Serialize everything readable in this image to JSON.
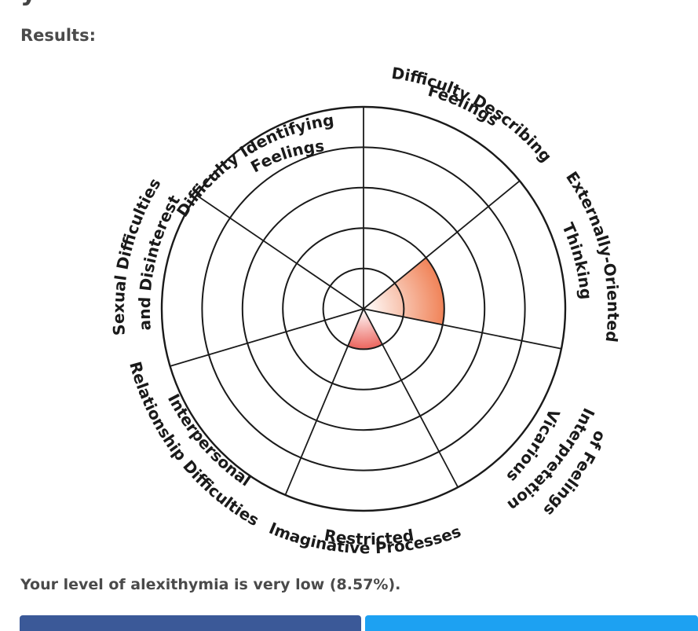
{
  "page": {
    "results_label": "Results:",
    "result_text": "Your level of alexithymia is very low (8.57%)."
  },
  "chart_data": {
    "type": "polar-area",
    "categories": [
      "Difficulty Describing Feelings",
      "Externally-Oriented Thinking",
      "Vicarious Interpretation of Feelings",
      "Restricted Imaginative Processes",
      "Interpersonal Relationship Difficulties",
      "Sexual Difficulties and Disinterest",
      "Difficulty Identifying Feelings"
    ],
    "values": [
      0,
      2,
      0,
      1,
      0,
      0,
      0
    ],
    "rlim": [
      0,
      5
    ],
    "rings": 5,
    "fill_colors": [
      "#f07b4f",
      "#ee5f55"
    ]
  },
  "labels": {
    "difficulty_identifying": [
      "Difficulty Identifying",
      "Feelings"
    ],
    "difficulty_describing": [
      "Difficulty Describing",
      "Feelings"
    ],
    "externally_oriented": [
      "Externally-Oriented",
      "Thinking"
    ],
    "vicarious": [
      "Vicarious",
      "Interpretation",
      "of Feelings"
    ],
    "restricted": [
      "Restricted",
      "Imaginative Processes"
    ],
    "interpersonal": [
      "Interpersonal",
      "Relationship Difficulties"
    ],
    "sexual": [
      "Sexual Difficulties",
      "and Disinterest"
    ]
  },
  "colors": {
    "facebook": "#3b5998",
    "twitter": "#1da1f2"
  }
}
